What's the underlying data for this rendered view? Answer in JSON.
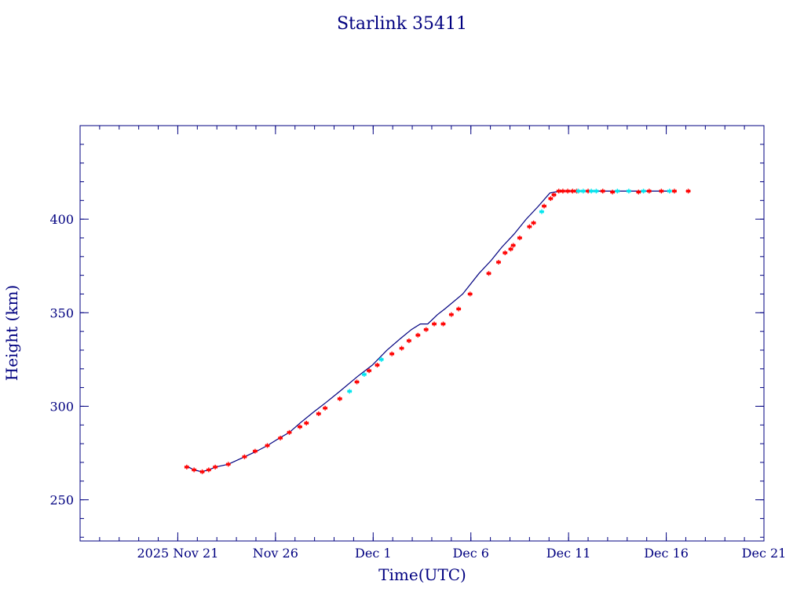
{
  "chart_data": {
    "type": "scatter",
    "title": "Starlink 35411",
    "xlabel": "Time(UTC)",
    "ylabel": "Height (km)",
    "x_axis": {
      "type": "date",
      "range": [
        "2025-11-16",
        "2025-12-21"
      ],
      "tick_labels": [
        {
          "date": "2025-11-21",
          "label": "2025 Nov 21"
        },
        {
          "date": "2025-11-26",
          "label": "Nov 26"
        },
        {
          "date": "2025-12-01",
          "label": "Dec  1"
        },
        {
          "date": "2025-12-06",
          "label": "Dec  6"
        },
        {
          "date": "2025-12-11",
          "label": "Dec 11"
        },
        {
          "date": "2025-12-16",
          "label": "Dec 16"
        },
        {
          "date": "2025-12-21",
          "label": "Dec 21"
        }
      ],
      "minor_tick_days": 1
    },
    "y_axis": {
      "range": [
        228,
        450
      ],
      "ticks": [
        250,
        300,
        350,
        400
      ],
      "minor_step": 10
    },
    "grid": false,
    "colors": {
      "axes": "#000080",
      "text": "#000080",
      "line": "#000080",
      "marker_primary": "#ff0000",
      "marker_secondary": "#00e5ee"
    },
    "series": [
      {
        "role": "trend-line",
        "mark": "line",
        "points": [
          [
            "2025-11-21 11:00",
            268
          ],
          [
            "2025-11-21 20:00",
            266
          ],
          [
            "2025-11-22 05:00",
            265
          ],
          [
            "2025-11-22 14:00",
            266
          ],
          [
            "2025-11-22 22:00",
            267.5
          ],
          [
            "2025-11-23 14:00",
            269
          ],
          [
            "2025-11-24 10:00",
            273
          ],
          [
            "2025-11-25 01:00",
            276
          ],
          [
            "2025-11-25 14:00",
            279
          ],
          [
            "2025-11-26 05:00",
            283
          ],
          [
            "2025-11-26 17:00",
            286
          ],
          [
            "2025-11-27 06:00",
            291
          ],
          [
            "2025-11-27 23:00",
            297
          ],
          [
            "2025-11-28 14:00",
            302
          ],
          [
            "2025-11-29 07:00",
            308
          ],
          [
            "2025-11-30 05:00",
            316
          ],
          [
            "2025-11-30 23:00",
            322
          ],
          [
            "2025-12-01 17:00",
            330
          ],
          [
            "2025-12-02 09:00",
            336
          ],
          [
            "2025-12-02 23:00",
            341
          ],
          [
            "2025-12-03 10:00",
            344
          ],
          [
            "2025-12-03 19:00",
            344
          ],
          [
            "2025-12-04 07:00",
            349
          ],
          [
            "2025-12-04 16:00",
            352
          ],
          [
            "2025-12-05 14:00",
            360
          ],
          [
            "2025-12-06 10:00",
            371
          ],
          [
            "2025-12-07 01:00",
            378
          ],
          [
            "2025-12-07 14:00",
            385
          ],
          [
            "2025-12-08 05:00",
            392
          ],
          [
            "2025-12-08 20:00",
            400
          ],
          [
            "2025-12-09 11:00",
            407
          ],
          [
            "2025-12-10 01:00",
            414
          ],
          [
            "2025-12-10 14:00",
            415
          ],
          [
            "2025-12-12 00:00",
            415
          ],
          [
            "2025-12-14 00:00",
            415
          ],
          [
            "2025-12-16 02:00",
            415
          ]
        ]
      },
      {
        "role": "primary-observations",
        "mark": "asterisk",
        "points": [
          [
            "2025-11-21 11:00",
            267.5
          ],
          [
            "2025-11-21 20:00",
            266
          ],
          [
            "2025-11-22 06:00",
            265
          ],
          [
            "2025-11-22 14:00",
            266
          ],
          [
            "2025-11-22 22:00",
            267.5
          ],
          [
            "2025-11-23 14:00",
            269
          ],
          [
            "2025-11-24 10:00",
            273
          ],
          [
            "2025-11-24 23:00",
            276
          ],
          [
            "2025-11-25 14:00",
            279
          ],
          [
            "2025-11-26 06:00",
            283
          ],
          [
            "2025-11-26 17:00",
            286
          ],
          [
            "2025-11-27 06:00",
            289
          ],
          [
            "2025-11-27 14:00",
            291
          ],
          [
            "2025-11-28 05:00",
            296
          ],
          [
            "2025-11-28 13:00",
            299
          ],
          [
            "2025-11-29 07:00",
            304
          ],
          [
            "2025-11-30 04:00",
            313
          ],
          [
            "2025-11-30 19:00",
            319
          ],
          [
            "2025-12-01 05:00",
            322
          ],
          [
            "2025-12-01 23:00",
            328
          ],
          [
            "2025-12-02 11:00",
            331
          ],
          [
            "2025-12-02 20:00",
            335
          ],
          [
            "2025-12-03 07:00",
            338
          ],
          [
            "2025-12-03 17:00",
            341
          ],
          [
            "2025-12-04 03:00",
            344
          ],
          [
            "2025-12-04 14:00",
            344
          ],
          [
            "2025-12-05 00:00",
            349
          ],
          [
            "2025-12-05 09:00",
            352
          ],
          [
            "2025-12-05 23:00",
            360
          ],
          [
            "2025-12-06 22:00",
            371
          ],
          [
            "2025-12-07 10:00",
            377
          ],
          [
            "2025-12-07 18:00",
            382
          ],
          [
            "2025-12-08 01:00",
            384
          ],
          [
            "2025-12-08 04:00",
            386
          ],
          [
            "2025-12-08 12:00",
            390
          ],
          [
            "2025-12-09 00:00",
            396
          ],
          [
            "2025-12-09 05:00",
            398
          ],
          [
            "2025-12-09 18:00",
            407
          ],
          [
            "2025-12-10 02:00",
            411
          ],
          [
            "2025-12-10 06:00",
            413
          ],
          [
            "2025-12-10 12:00",
            415
          ],
          [
            "2025-12-10 17:00",
            415
          ],
          [
            "2025-12-10 23:00",
            415
          ],
          [
            "2025-12-11 05:00",
            415
          ],
          [
            "2025-12-11 10:00",
            415
          ],
          [
            "2025-12-12 00:00",
            415
          ],
          [
            "2025-12-12 18:00",
            415
          ],
          [
            "2025-12-13 06:00",
            414.5
          ],
          [
            "2025-12-14 14:00",
            414.5
          ],
          [
            "2025-12-15 03:00",
            415
          ],
          [
            "2025-12-15 18:00",
            415
          ],
          [
            "2025-12-16 10:00",
            415
          ],
          [
            "2025-12-17 03:00",
            415
          ]
        ]
      },
      {
        "role": "secondary-observations",
        "mark": "asterisk",
        "points": [
          [
            "2025-11-29 19:00",
            308
          ],
          [
            "2025-11-30 13:00",
            317
          ],
          [
            "2025-12-01 10:00",
            325
          ],
          [
            "2025-12-09 15:00",
            404
          ],
          [
            "2025-12-11 12:00",
            415
          ],
          [
            "2025-12-11 18:00",
            415
          ],
          [
            "2025-12-12 04:00",
            415
          ],
          [
            "2025-12-12 10:00",
            415
          ],
          [
            "2025-12-13 12:00",
            415
          ],
          [
            "2025-12-14 02:00",
            415
          ],
          [
            "2025-12-14 20:00",
            415
          ],
          [
            "2025-12-16 04:00",
            415
          ]
        ]
      }
    ]
  }
}
